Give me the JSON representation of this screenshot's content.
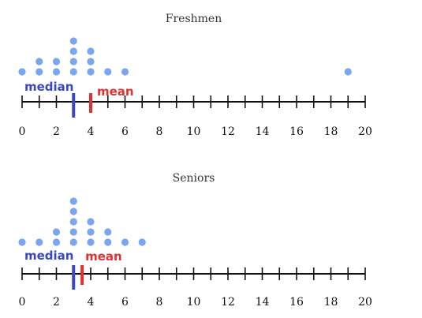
{
  "colors": {
    "dot": "#7aa6f0",
    "median": "#3a47c4",
    "mean": "#e03030",
    "axis": "#111111"
  },
  "chart_data": [
    {
      "type": "scatter",
      "subtype": "dot-plot",
      "title": "Freshmen",
      "xlim": [
        0,
        20
      ],
      "major_ticks": [
        0,
        2,
        4,
        6,
        8,
        10,
        12,
        14,
        16,
        18,
        20
      ],
      "tick_labels": [
        "0",
        "2",
        "4",
        "6",
        "8",
        "10",
        "12",
        "14",
        "16",
        "18",
        "20"
      ],
      "minor_tick_step": 1,
      "counts": [
        {
          "x": 0,
          "count": 1
        },
        {
          "x": 1,
          "count": 2
        },
        {
          "x": 2,
          "count": 2
        },
        {
          "x": 3,
          "count": 4
        },
        {
          "x": 4,
          "count": 3
        },
        {
          "x": 5,
          "count": 1
        },
        {
          "x": 6,
          "count": 1
        },
        {
          "x": 19,
          "count": 1
        }
      ],
      "median": 3,
      "mean": 4,
      "median_label": "median",
      "mean_label": "mean"
    },
    {
      "type": "scatter",
      "subtype": "dot-plot",
      "title": "Seniors",
      "xlim": [
        0,
        20
      ],
      "major_ticks": [
        0,
        2,
        4,
        6,
        8,
        10,
        12,
        14,
        16,
        18,
        20
      ],
      "tick_labels": [
        "0",
        "2",
        "4",
        "6",
        "8",
        "10",
        "12",
        "14",
        "16",
        "18",
        "20"
      ],
      "minor_tick_step": 1,
      "counts": [
        {
          "x": 0,
          "count": 1
        },
        {
          "x": 1,
          "count": 1
        },
        {
          "x": 2,
          "count": 2
        },
        {
          "x": 3,
          "count": 5
        },
        {
          "x": 4,
          "count": 3
        },
        {
          "x": 5,
          "count": 2
        },
        {
          "x": 6,
          "count": 1
        },
        {
          "x": 7,
          "count": 1
        }
      ],
      "median": 3,
      "mean": 3.5,
      "median_label": "median",
      "mean_label": "mean"
    }
  ]
}
